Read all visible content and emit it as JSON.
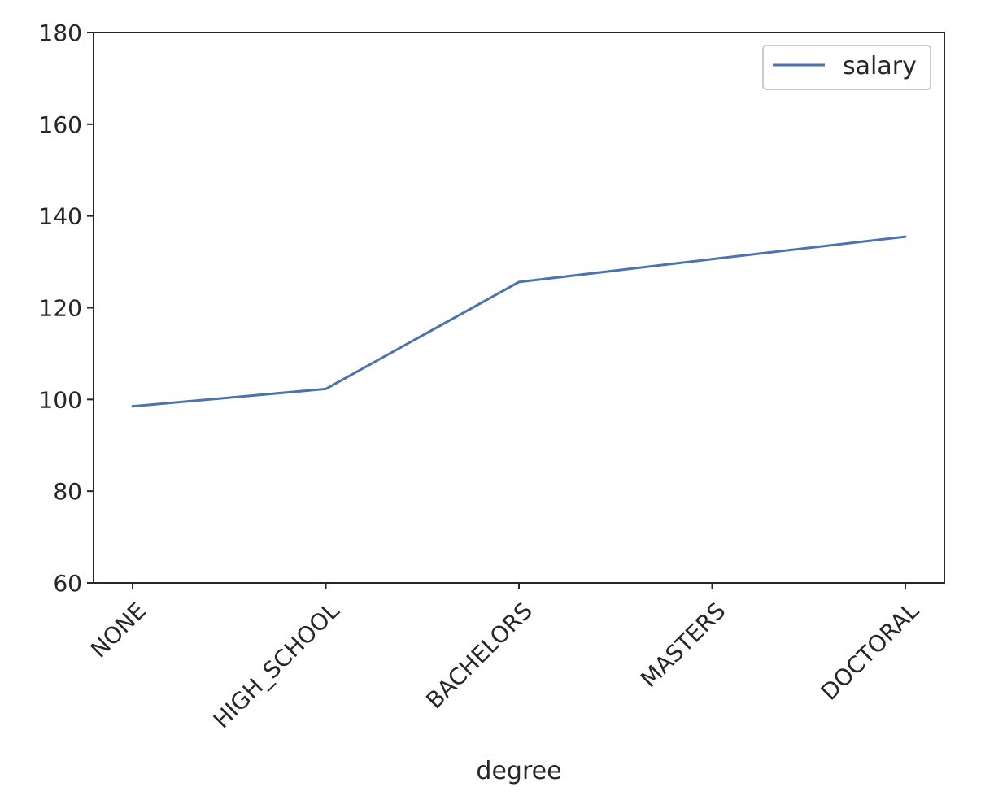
{
  "chart_data": {
    "type": "line",
    "categories": [
      "NONE",
      "HIGH_SCHOOL",
      "BACHELORS",
      "MASTERS",
      "DOCTORAL"
    ],
    "series": [
      {
        "name": "salary",
        "values": [
          98.5,
          102.3,
          125.6,
          130.6,
          135.5
        ],
        "color": "#4c72b0"
      }
    ],
    "xlabel": "degree",
    "ylabel": "",
    "ylim": [
      60,
      180
    ],
    "yticks": [
      60,
      80,
      100,
      120,
      140,
      160,
      180
    ],
    "grid": false,
    "legend": "top-right"
  }
}
